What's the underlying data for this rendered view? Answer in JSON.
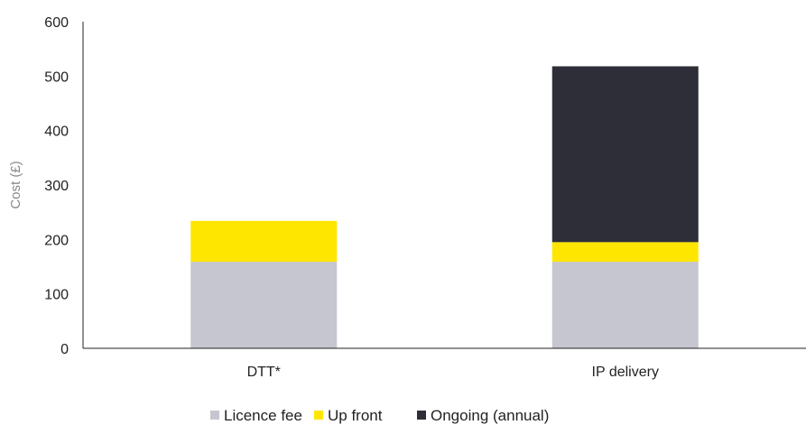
{
  "chart_data": {
    "type": "bar",
    "stacked": true,
    "title": "",
    "xlabel": "",
    "ylabel": "Cost (£)",
    "ylim": [
      0,
      600
    ],
    "yticks": [
      0,
      100,
      200,
      300,
      400,
      500,
      600
    ],
    "grid": false,
    "legend_position": "bottom",
    "categories": [
      "DTT*",
      "IP delivery"
    ],
    "series": [
      {
        "name": "Licence fee",
        "values": [
          159,
          159
        ],
        "color": "#c6c6d0"
      },
      {
        "name": "Up front",
        "values": [
          75,
          36
        ],
        "color": "#ffe600"
      },
      {
        "name": "Ongoing (annual)",
        "values": [
          0,
          323
        ],
        "color": "#2e2e38"
      }
    ]
  }
}
